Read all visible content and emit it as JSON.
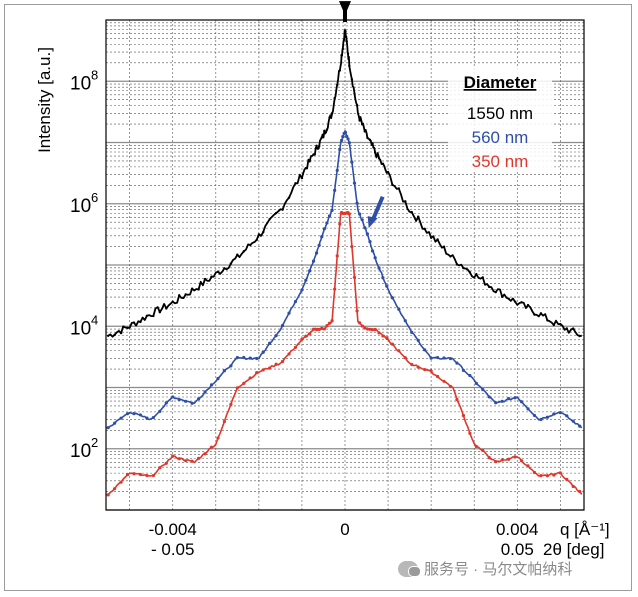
{
  "chart_data": {
    "type": "line",
    "title": "",
    "ylabel": "Intensity [a.u.]",
    "xlabel_q": "q [Å⁻¹]",
    "xlabel_2theta": "2θ [deg]",
    "y_scale": "log",
    "xlim": [
      -0.00555,
      0.00555
    ],
    "ylim": [
      10,
      1000000000.0
    ],
    "grid": true,
    "x_ticks_q": [
      {
        "value": -0.004,
        "label": "-0.004"
      },
      {
        "value": 0,
        "label": "0"
      },
      {
        "value": 0.004,
        "label": "0.004"
      }
    ],
    "x_ticks_2theta": [
      {
        "value": -0.004,
        "label": "- 0.05"
      },
      {
        "value": 0.004,
        "label": "0.05"
      }
    ],
    "y_ticks": [
      {
        "value": 100,
        "base": "10",
        "exp": "2"
      },
      {
        "value": 10000,
        "base": "10",
        "exp": "4"
      },
      {
        "value": 1000000,
        "base": "10",
        "exp": "6"
      },
      {
        "value": 100000000,
        "base": "10",
        "exp": "8"
      }
    ],
    "legend": {
      "title": "Diameter",
      "position": "top-right",
      "entries": [
        {
          "label": "1550 nm",
          "color": "#000000"
        },
        {
          "label": "560 nm",
          "color": "#2f4ea8"
        },
        {
          "label": "350 nm",
          "color": "#e0362c"
        }
      ]
    },
    "series": [
      {
        "name": "1550 nm",
        "color": "#000000",
        "x": [
          -0.0055,
          -0.005,
          -0.0045,
          -0.004,
          -0.0035,
          -0.003,
          -0.0025,
          -0.002,
          -0.0015,
          -0.001,
          -0.0007,
          -0.0005,
          -0.0003,
          -0.0001,
          0,
          0.0001,
          0.0003,
          0.0005,
          0.0007,
          0.001,
          0.0015,
          0.002,
          0.0025,
          0.003,
          0.0035,
          0.004,
          0.0045,
          0.005,
          0.0055
        ],
        "y": [
          7000,
          10000,
          16000,
          24000,
          40000,
          70000,
          130000,
          300000,
          800000,
          3000000,
          7000000,
          13000000,
          30000000,
          200000000,
          700000000,
          200000000,
          30000000,
          13000000,
          7000000,
          3000000,
          800000,
          300000,
          130000,
          70000,
          40000,
          24000,
          16000,
          10000,
          7000
        ]
      },
      {
        "name": "560 nm",
        "color": "#2f4ea8",
        "x": [
          -0.0055,
          -0.005,
          -0.0045,
          -0.004,
          -0.0035,
          -0.003,
          -0.0025,
          -0.002,
          -0.0015,
          -0.001,
          -0.0007,
          -0.0005,
          -0.0003,
          -0.0001,
          0,
          0.0001,
          0.0003,
          0.0005,
          0.0007,
          0.001,
          0.0015,
          0.002,
          0.0025,
          0.003,
          0.0035,
          0.004,
          0.0045,
          0.005,
          0.0055
        ],
        "y": [
          220,
          400,
          300,
          700,
          550,
          1300,
          3000,
          3000,
          9000,
          40000,
          130000,
          350000,
          800000,
          10000000,
          15000000,
          10000000,
          800000,
          350000,
          130000,
          40000,
          9000,
          3000,
          3000,
          1300,
          550,
          700,
          300,
          400,
          220
        ]
      },
      {
        "name": "350 nm",
        "color": "#e0362c",
        "x": [
          -0.0055,
          -0.005,
          -0.0045,
          -0.004,
          -0.0035,
          -0.003,
          -0.0025,
          -0.002,
          -0.0015,
          -0.001,
          -0.0007,
          -0.0005,
          -0.0003,
          -0.0001,
          0,
          0.0001,
          0.0003,
          0.0005,
          0.0007,
          0.001,
          0.0015,
          0.002,
          0.0025,
          0.003,
          0.0035,
          0.004,
          0.0045,
          0.005,
          0.0055
        ],
        "y": [
          18,
          40,
          35,
          75,
          60,
          120,
          1000,
          1800,
          2500,
          6000,
          9000,
          9000,
          12000,
          700000,
          700000,
          700000,
          12000,
          9000,
          9000,
          6000,
          2500,
          1800,
          1000,
          120,
          60,
          75,
          35,
          40,
          18
        ]
      }
    ],
    "annotations": [
      {
        "type": "arrow",
        "color": "#000000",
        "x": 0,
        "y_from": 3000000000,
        "y_to": 1200000000
      },
      {
        "type": "arrow",
        "color": "#2f4ea8",
        "x": 0.00055,
        "y_from": 1300000,
        "y_to": 400000
      }
    ]
  },
  "watermark": "服务号 · 马尔文帕纳科"
}
